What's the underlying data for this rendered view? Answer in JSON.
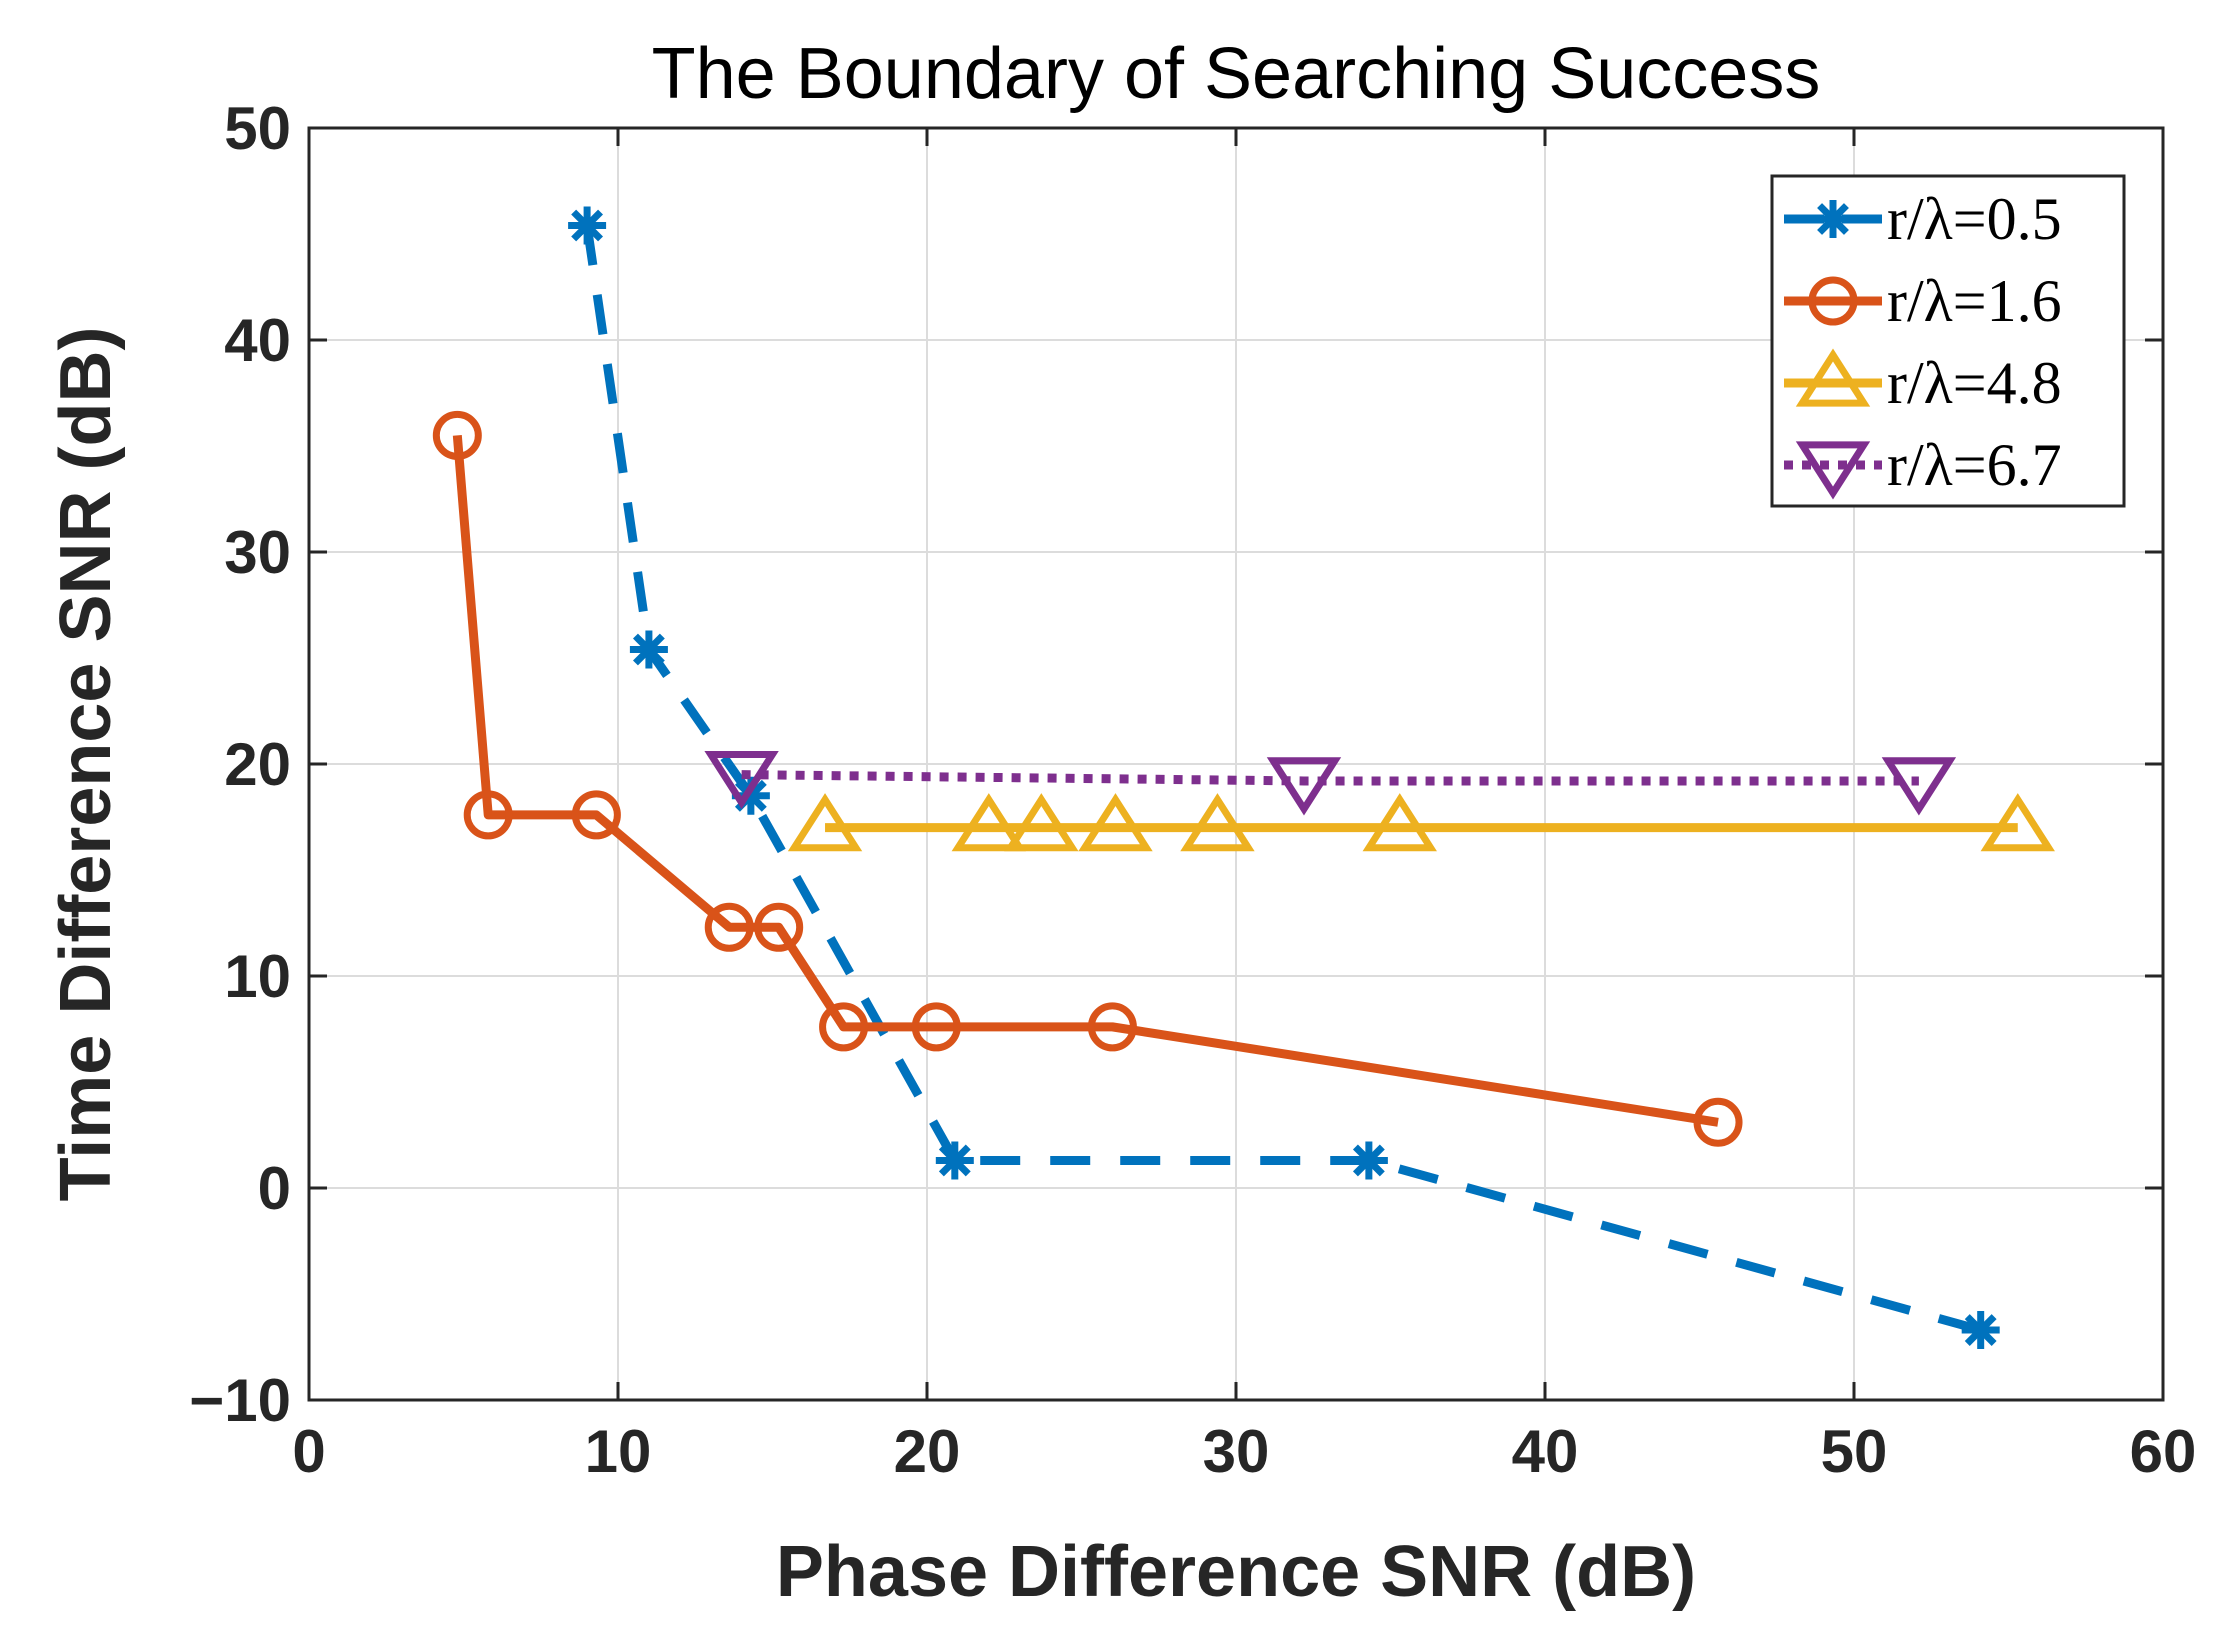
{
  "chart_data": {
    "type": "line",
    "title": "The Boundary of Searching Success",
    "xlabel": "Phase Difference SNR (dB)",
    "ylabel": "Time Difference SNR (dB)",
    "xlim": [
      0,
      60
    ],
    "ylim": [
      -10,
      50
    ],
    "xticks": [
      0,
      10,
      20,
      30,
      40,
      50,
      60
    ],
    "xtick_labels": [
      "0",
      "10",
      "20",
      "30",
      "40",
      "50",
      "60"
    ],
    "yticks": [
      -10,
      0,
      10,
      20,
      30,
      40,
      50
    ],
    "ytick_labels": [
      "−10",
      "0",
      "10",
      "20",
      "30",
      "40",
      "50"
    ],
    "grid": true,
    "legend_position": "top-right",
    "series": [
      {
        "name": "r/λ=0.5",
        "color": "#0072BD",
        "line_style": "dashed",
        "marker": "asterisk",
        "x": [
          9.0,
          11.0,
          14.3,
          20.9,
          34.3,
          54.1
        ],
        "y": [
          45.4,
          25.4,
          18.5,
          1.3,
          1.3,
          -6.7
        ]
      },
      {
        "name": "r/λ=1.6",
        "color": "#D95319",
        "line_style": "solid",
        "marker": "circle",
        "x": [
          4.8,
          5.8,
          9.3,
          13.6,
          15.2,
          17.3,
          20.3,
          26.0,
          45.6
        ],
        "y": [
          35.5,
          17.6,
          17.6,
          12.3,
          12.3,
          7.6,
          7.6,
          7.6,
          3.1
        ]
      },
      {
        "name": "r/λ=4.8",
        "color": "#EDB120",
        "line_style": "solid",
        "marker": "triangle-up",
        "x": [
          16.7,
          22.0,
          23.7,
          26.1,
          29.4,
          35.3,
          55.3
        ],
        "y": [
          17.0,
          17.0,
          17.0,
          17.0,
          17.0,
          17.0,
          17.0
        ]
      },
      {
        "name": "r/λ=6.7",
        "color": "#7E2F8E",
        "line_style": "dotted",
        "marker": "triangle-down",
        "x": [
          14.0,
          32.2,
          52.1
        ],
        "y": [
          19.5,
          19.2,
          19.2
        ]
      }
    ]
  }
}
